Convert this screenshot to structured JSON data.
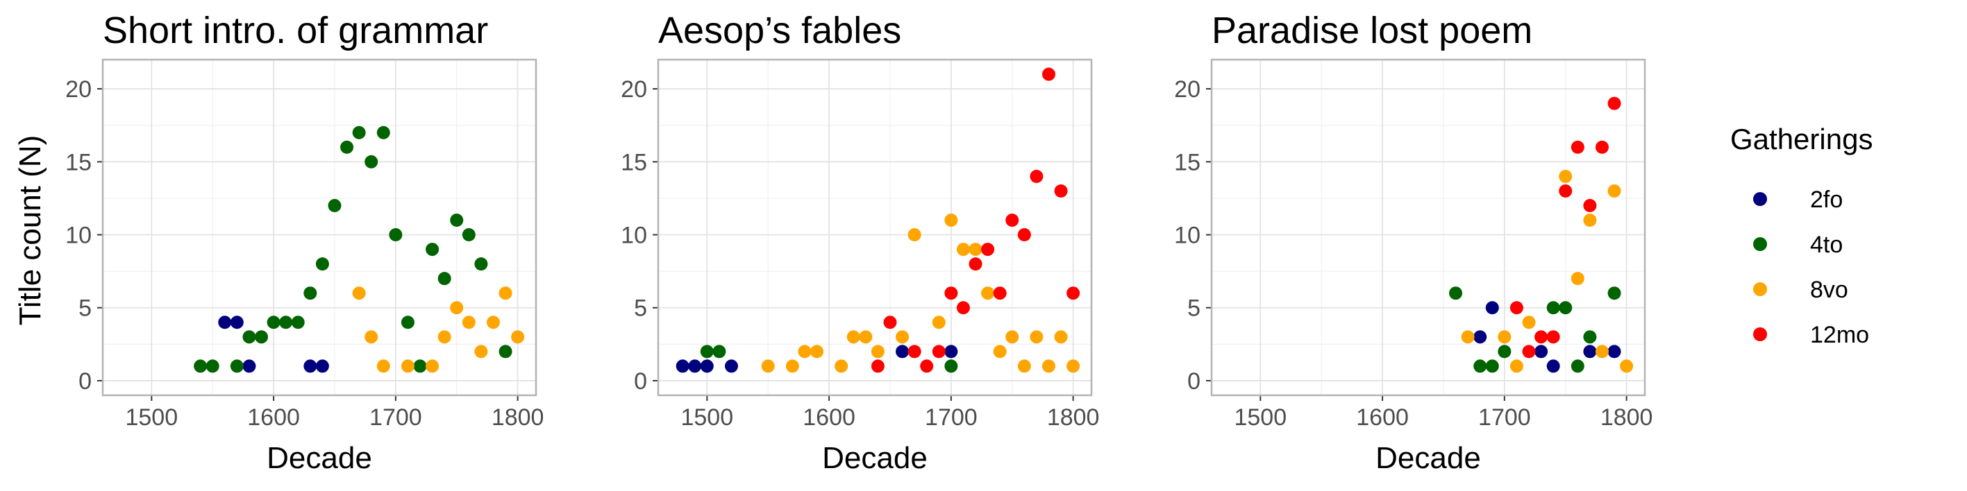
{
  "figure": {
    "ylabel": "Title count (N)",
    "xlabel": "Decade"
  },
  "legend": {
    "title": "Gatherings",
    "placement": "right",
    "items": [
      {
        "label": "2fo",
        "color": "#00007f"
      },
      {
        "label": "4to",
        "color": "#006400"
      },
      {
        "label": "8vo",
        "color": "#ffa500"
      },
      {
        "label": "12mo",
        "color": "#ff0000"
      }
    ]
  },
  "chart_data": [
    {
      "type": "scatter",
      "title": "Short intro. of grammar",
      "xlabel": "Decade",
      "ylabel": "Title count (N)",
      "xlim": [
        1460,
        1815
      ],
      "ylim": [
        -1,
        22
      ],
      "xticks": [
        "1500",
        "1600",
        "1700",
        "1800"
      ],
      "yticks": [
        "0",
        "5",
        "10",
        "15",
        "20"
      ],
      "grid": true,
      "series": [
        {
          "name": "2fo",
          "color": "#00007f",
          "points": [
            [
              1560,
              4
            ],
            [
              1570,
              4
            ],
            [
              1580,
              1
            ],
            [
              1630,
              1
            ],
            [
              1640,
              1
            ]
          ]
        },
        {
          "name": "4to",
          "color": "#006400",
          "points": [
            [
              1540,
              1
            ],
            [
              1550,
              1
            ],
            [
              1570,
              1
            ],
            [
              1580,
              3
            ],
            [
              1590,
              3
            ],
            [
              1600,
              4
            ],
            [
              1610,
              4
            ],
            [
              1620,
              4
            ],
            [
              1630,
              6
            ],
            [
              1640,
              8
            ],
            [
              1650,
              12
            ],
            [
              1660,
              16
            ],
            [
              1670,
              17
            ],
            [
              1680,
              15
            ],
            [
              1690,
              17
            ],
            [
              1700,
              10
            ],
            [
              1710,
              4
            ],
            [
              1720,
              1
            ],
            [
              1730,
              9
            ],
            [
              1740,
              7
            ],
            [
              1750,
              11
            ],
            [
              1760,
              10
            ],
            [
              1770,
              8
            ],
            [
              1790,
              2
            ]
          ]
        },
        {
          "name": "8vo",
          "color": "#ffa500",
          "points": [
            [
              1670,
              6
            ],
            [
              1680,
              3
            ],
            [
              1690,
              1
            ],
            [
              1710,
              1
            ],
            [
              1730,
              1
            ],
            [
              1740,
              3
            ],
            [
              1750,
              5
            ],
            [
              1760,
              4
            ],
            [
              1770,
              2
            ],
            [
              1780,
              4
            ],
            [
              1790,
              6
            ],
            [
              1800,
              3
            ]
          ]
        },
        {
          "name": "12mo",
          "color": "#ff0000",
          "points": []
        }
      ]
    },
    {
      "type": "scatter",
      "title": "Aesop’s fables",
      "xlabel": "Decade",
      "ylabel": "",
      "xlim": [
        1460,
        1815
      ],
      "ylim": [
        -1,
        22
      ],
      "xticks": [
        "1500",
        "1600",
        "1700",
        "1800"
      ],
      "yticks": [
        "0",
        "5",
        "10",
        "15",
        "20"
      ],
      "grid": true,
      "series": [
        {
          "name": "2fo",
          "color": "#00007f",
          "points": [
            [
              1480,
              1
            ],
            [
              1490,
              1
            ],
            [
              1500,
              1
            ],
            [
              1520,
              1
            ],
            [
              1660,
              2
            ],
            [
              1700,
              2
            ]
          ]
        },
        {
          "name": "4to",
          "color": "#006400",
          "points": [
            [
              1500,
              2
            ],
            [
              1510,
              2
            ],
            [
              1700,
              1
            ]
          ]
        },
        {
          "name": "8vo",
          "color": "#ffa500",
          "points": [
            [
              1550,
              1
            ],
            [
              1570,
              1
            ],
            [
              1580,
              2
            ],
            [
              1590,
              2
            ],
            [
              1610,
              1
            ],
            [
              1620,
              3
            ],
            [
              1630,
              3
            ],
            [
              1640,
              2
            ],
            [
              1660,
              3
            ],
            [
              1670,
              10
            ],
            [
              1690,
              4
            ],
            [
              1700,
              11
            ],
            [
              1710,
              9
            ],
            [
              1720,
              9
            ],
            [
              1730,
              6
            ],
            [
              1740,
              2
            ],
            [
              1750,
              3
            ],
            [
              1760,
              1
            ],
            [
              1770,
              3
            ],
            [
              1780,
              1
            ],
            [
              1790,
              3
            ],
            [
              1800,
              1
            ]
          ]
        },
        {
          "name": "12mo",
          "color": "#ff0000",
          "points": [
            [
              1640,
              1
            ],
            [
              1650,
              4
            ],
            [
              1670,
              2
            ],
            [
              1680,
              1
            ],
            [
              1690,
              2
            ],
            [
              1700,
              6
            ],
            [
              1710,
              5
            ],
            [
              1720,
              8
            ],
            [
              1730,
              9
            ],
            [
              1740,
              6
            ],
            [
              1750,
              11
            ],
            [
              1760,
              10
            ],
            [
              1770,
              14
            ],
            [
              1780,
              21
            ],
            [
              1790,
              13
            ],
            [
              1800,
              6
            ]
          ]
        }
      ]
    },
    {
      "type": "scatter",
      "title": "Paradise lost poem",
      "xlabel": "Decade",
      "ylabel": "",
      "xlim": [
        1460,
        1815
      ],
      "ylim": [
        -1,
        22
      ],
      "xticks": [
        "1500",
        "1600",
        "1700",
        "1800"
      ],
      "yticks": [
        "0",
        "5",
        "10",
        "15",
        "20"
      ],
      "grid": true,
      "series": [
        {
          "name": "2fo",
          "color": "#00007f",
          "points": [
            [
              1680,
              3
            ],
            [
              1690,
              5
            ],
            [
              1730,
              2
            ],
            [
              1740,
              1
            ],
            [
              1770,
              2
            ],
            [
              1790,
              2
            ]
          ]
        },
        {
          "name": "4to",
          "color": "#006400",
          "points": [
            [
              1660,
              6
            ],
            [
              1680,
              1
            ],
            [
              1690,
              1
            ],
            [
              1700,
              2
            ],
            [
              1740,
              5
            ],
            [
              1750,
              5
            ],
            [
              1760,
              1
            ],
            [
              1770,
              3
            ],
            [
              1790,
              6
            ]
          ]
        },
        {
          "name": "8vo",
          "color": "#ffa500",
          "points": [
            [
              1670,
              3
            ],
            [
              1700,
              3
            ],
            [
              1710,
              1
            ],
            [
              1720,
              4
            ],
            [
              1750,
              14
            ],
            [
              1760,
              7
            ],
            [
              1770,
              11
            ],
            [
              1780,
              2
            ],
            [
              1790,
              13
            ],
            [
              1800,
              1
            ]
          ]
        },
        {
          "name": "12mo",
          "color": "#ff0000",
          "points": [
            [
              1710,
              5
            ],
            [
              1720,
              2
            ],
            [
              1730,
              3
            ],
            [
              1740,
              3
            ],
            [
              1750,
              13
            ],
            [
              1760,
              16
            ],
            [
              1770,
              12
            ],
            [
              1780,
              16
            ],
            [
              1790,
              19
            ]
          ]
        }
      ]
    }
  ]
}
